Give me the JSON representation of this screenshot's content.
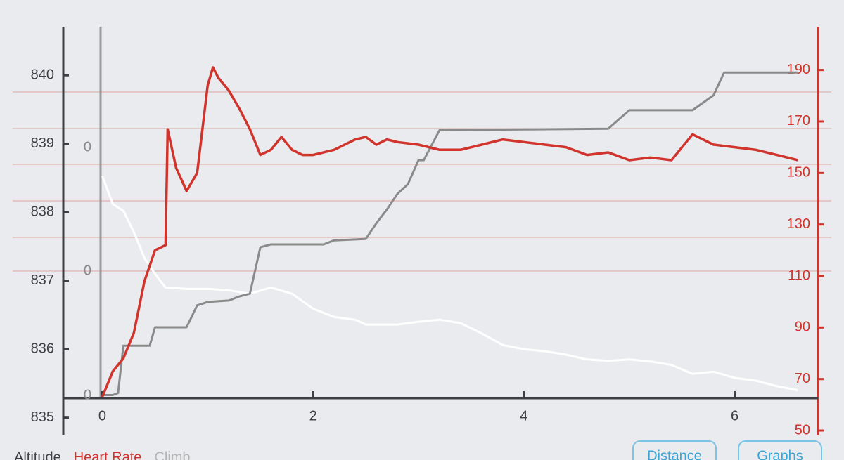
{
  "chart_data": {
    "type": "line",
    "xlim": [
      -0.37,
      6.79
    ],
    "xticks": [
      0,
      2,
      4,
      6
    ],
    "ylim": [
      834.74,
      840.71
    ],
    "yticks": [
      835,
      836,
      837,
      838,
      839,
      840
    ],
    "y2lim": [
      48.1,
      206.8
    ],
    "y2ticks": [
      50,
      70,
      90,
      110,
      130,
      150,
      170,
      190
    ],
    "climb_axis_labels": [
      "0",
      "0",
      "0"
    ],
    "series": [
      {
        "name": "Altitude",
        "color": "#ffffff",
        "x": [
          0,
          0.1,
          0.2,
          0.3,
          0.4,
          0.5,
          0.6,
          0.8,
          1.0,
          1.2,
          1.4,
          1.6,
          1.8,
          2.0,
          2.2,
          2.4,
          2.5,
          2.8,
          3.0,
          3.2,
          3.4,
          3.6,
          3.8,
          4.0,
          4.2,
          4.4,
          4.6,
          4.8,
          5.0,
          5.2,
          5.4,
          5.6,
          5.8,
          6.0,
          6.2,
          6.4,
          6.6
        ],
        "values": [
          838.53,
          838.12,
          838.02,
          837.71,
          837.33,
          837.1,
          836.9,
          836.88,
          836.88,
          836.86,
          836.81,
          836.9,
          836.81,
          836.59,
          836.47,
          836.43,
          836.36,
          836.36,
          836.4,
          836.43,
          836.38,
          836.23,
          836.06,
          836.0,
          835.97,
          835.92,
          835.85,
          835.83,
          835.85,
          835.82,
          835.77,
          835.64,
          835.67,
          835.58,
          835.54,
          835.46,
          835.4
        ]
      },
      {
        "name": "Heart Rate",
        "color": "#d0342c",
        "axis": "y2",
        "x": [
          0,
          0.05,
          0.1,
          0.2,
          0.3,
          0.4,
          0.5,
          0.6,
          0.62,
          0.7,
          0.8,
          0.9,
          1.0,
          1.05,
          1.1,
          1.2,
          1.3,
          1.4,
          1.5,
          1.6,
          1.7,
          1.8,
          1.9,
          2.0,
          2.2,
          2.4,
          2.5,
          2.6,
          2.7,
          2.8,
          3.0,
          3.2,
          3.4,
          3.6,
          3.8,
          4.0,
          4.2,
          4.4,
          4.6,
          4.8,
          5.0,
          5.2,
          5.4,
          5.6,
          5.8,
          6.0,
          6.2,
          6.4,
          6.6
        ],
        "values": [
          63,
          68,
          73,
          78,
          88,
          108,
          120,
          122,
          167,
          152,
          143,
          150,
          184,
          191,
          187,
          182,
          175,
          167,
          157,
          159,
          164,
          159,
          157,
          157,
          159,
          163,
          164,
          161,
          163,
          162,
          161,
          159,
          159,
          161,
          163,
          162,
          161,
          160,
          157,
          158,
          155,
          156,
          155,
          165,
          161,
          160,
          159,
          157,
          155
        ]
      },
      {
        "name": "Climb",
        "color": "#8a8a8a",
        "x": [
          0,
          0.1,
          0.15,
          0.2,
          0.45,
          0.5,
          0.8,
          0.9,
          1.0,
          1.2,
          1.3,
          1.4,
          1.5,
          1.6,
          2.1,
          2.2,
          2.5,
          2.6,
          2.7,
          2.8,
          2.9,
          3.0,
          3.05,
          3.2,
          4.8,
          5.0,
          5.6,
          5.8,
          5.9,
          6.6
        ],
        "values": [
          835.33,
          835.33,
          835.36,
          836.05,
          836.05,
          836.32,
          836.32,
          836.64,
          836.69,
          836.71,
          836.77,
          836.81,
          837.49,
          837.53,
          837.53,
          837.59,
          837.61,
          837.84,
          838.04,
          838.27,
          838.41,
          838.76,
          838.76,
          839.2,
          839.22,
          839.49,
          839.49,
          839.71,
          840.04,
          840.04
        ]
      }
    ]
  },
  "buttons": [
    "Distance",
    "Graphs"
  ]
}
